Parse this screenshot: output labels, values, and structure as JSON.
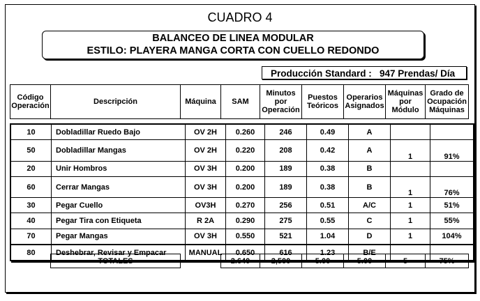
{
  "title": "CUADRO 4",
  "subtitle": {
    "line1": "BALANCEO DE LINEA MODULAR",
    "line2": "ESTILO: PLAYERA MANGA CORTA CON CUELLO REDONDO"
  },
  "production": {
    "label": "Producción Standard :",
    "value": "947 Prendas/ Día"
  },
  "headers": [
    "Código Operación",
    "Descripción",
    "Máquina",
    "SAM",
    "Minutos por Operación",
    "Puestos Teóricos",
    "Operarios Asignados",
    "Máquinas por Módulo",
    "Grado de Ocupación Máquinas"
  ],
  "rows": [
    [
      "10",
      "Dobladillar Ruedo Bajo",
      "OV 2H",
      "0.260",
      "246",
      "0.49",
      "A",
      "",
      ""
    ],
    [
      "50",
      "Dobladillar Mangas",
      "OV 2H",
      "0.220",
      "208",
      "0.42",
      "A",
      "1",
      "91%"
    ],
    [
      "20",
      "Unir Hombros",
      "OV 3H",
      "0.200",
      "189",
      "0.38",
      "B",
      "",
      ""
    ],
    [
      "60",
      "Cerrar Mangas",
      "OV 3H",
      "0.200",
      "189",
      "0.38",
      "B",
      "1",
      "76%"
    ],
    [
      "30",
      "Pegar Cuello",
      "OV3H",
      "0.270",
      "256",
      "0.51",
      "A/C",
      "1",
      "51%"
    ],
    [
      "40",
      "Pegar Tira con Etiqueta",
      "R 2A",
      "0.290",
      "275",
      "0.55",
      "C",
      "1",
      "55%"
    ],
    [
      "70",
      "Pegar Mangas",
      "OV 3H",
      "0.550",
      "521",
      "1.04",
      "D",
      "1",
      "104%"
    ],
    [
      "80",
      "Deshebrar,  Revisar y Empacar",
      "MANUAL",
      "0.650",
      "616",
      "1.23",
      "B/E",
      "",
      ""
    ]
  ],
  "totals": {
    "label": "TOTALES",
    "sam": "2.640",
    "minutos": "2,500",
    "puestos": "5.00",
    "operarios": "5.00",
    "maquinas": "5",
    "grado": "75%"
  }
}
